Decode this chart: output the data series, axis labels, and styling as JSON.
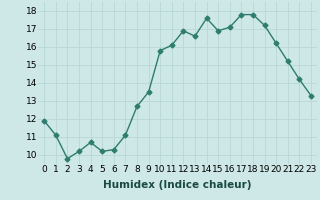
{
  "x": [
    0,
    1,
    2,
    3,
    4,
    5,
    6,
    7,
    8,
    9,
    10,
    11,
    12,
    13,
    14,
    15,
    16,
    17,
    18,
    19,
    20,
    21,
    22,
    23
  ],
  "y": [
    11.9,
    11.1,
    9.8,
    10.2,
    10.7,
    10.2,
    10.3,
    11.1,
    12.7,
    13.5,
    15.8,
    16.1,
    16.9,
    16.6,
    17.6,
    16.9,
    17.1,
    17.8,
    17.8,
    17.2,
    16.2,
    15.2,
    14.2,
    13.3
  ],
  "xlabel": "Humidex (Indice chaleur)",
  "ylim": [
    9.5,
    18.5
  ],
  "xlim": [
    -0.5,
    23.5
  ],
  "yticks": [
    10,
    11,
    12,
    13,
    14,
    15,
    16,
    17,
    18
  ],
  "xticks": [
    0,
    1,
    2,
    3,
    4,
    5,
    6,
    7,
    8,
    9,
    10,
    11,
    12,
    13,
    14,
    15,
    16,
    17,
    18,
    19,
    20,
    21,
    22,
    23
  ],
  "xtick_labels": [
    "0",
    "1",
    "2",
    "3",
    "4",
    "5",
    "6",
    "7",
    "8",
    "9",
    "10",
    "11",
    "12",
    "13",
    "14",
    "15",
    "16",
    "17",
    "18",
    "19",
    "20",
    "21",
    "22",
    "23"
  ],
  "line_color": "#2e7d6e",
  "marker_color": "#2e7d6e",
  "bg_color": "#cde8e6",
  "grid_color": "#b8d8d5",
  "marker": "D",
  "markersize": 2.5,
  "linewidth": 1.0,
  "xlabel_fontsize": 7.5,
  "tick_fontsize": 6.5
}
